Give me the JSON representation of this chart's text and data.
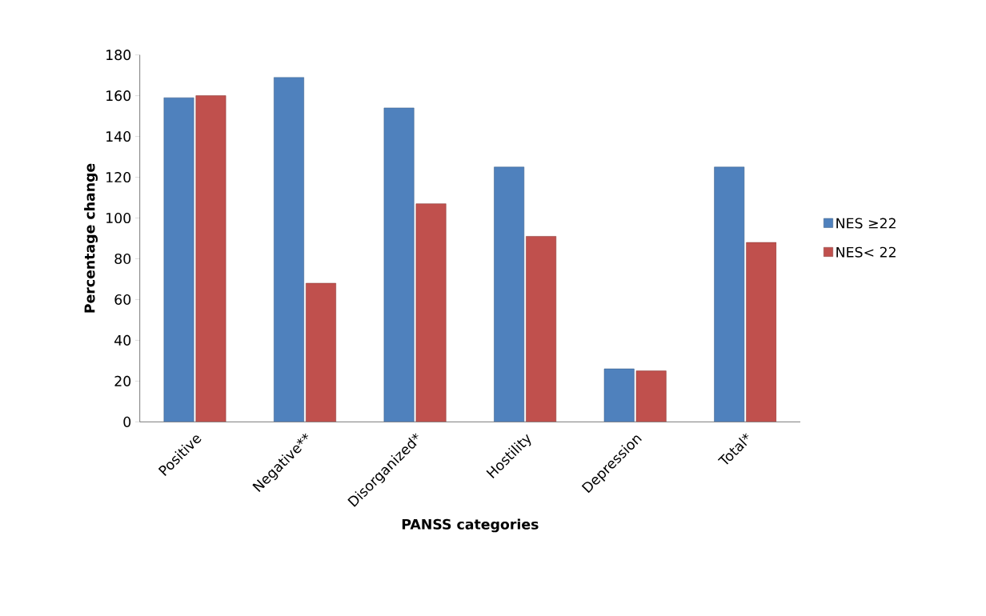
{
  "chart_data": {
    "type": "bar",
    "xlabel": "PANSS categories",
    "ylabel": "Percentage change",
    "categories": [
      "Positive",
      "Negative**",
      "Disorganized*",
      "Hostility",
      "Depression",
      "Total*"
    ],
    "series": [
      {
        "name": "NES ≥22",
        "color": "#4f81bd",
        "values": [
          159,
          169,
          154,
          125,
          26,
          125
        ]
      },
      {
        "name": "NES< 22",
        "color": "#c0504d",
        "values": [
          160,
          68,
          107,
          91,
          25,
          88
        ]
      }
    ],
    "ylim": [
      0,
      180
    ],
    "yticks": [
      0,
      20,
      40,
      60,
      80,
      100,
      120,
      140,
      160,
      180
    ],
    "legend": "right",
    "grid": false
  }
}
